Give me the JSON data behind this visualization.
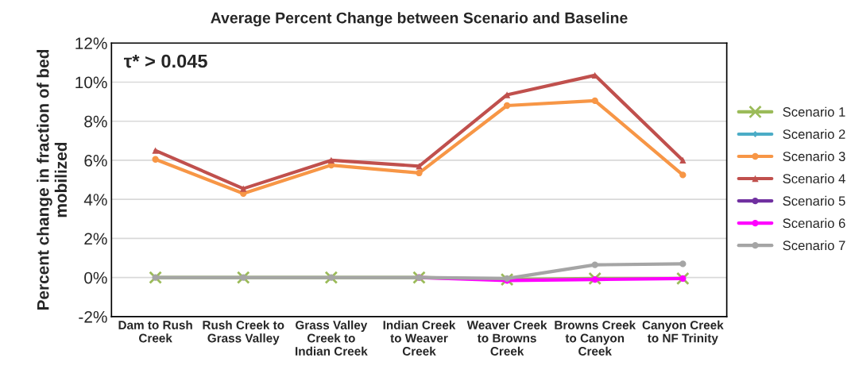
{
  "chart_data": {
    "type": "line",
    "title": "Average Percent Change between Scenario and Baseline",
    "ylabel": "Percent change in fraction of bed\nmobilized",
    "annotations": [
      "τ* > 0.045"
    ],
    "categories": [
      "Dam to Rush\nCreek",
      "Rush Creek to\nGrass Valley",
      "Grass Valley\nCreek to\nIndian Creek",
      "Indian Creek\nto Weaver\nCreek",
      "Weaver Creek\nto Browns\nCreek",
      "Browns Creek\nto Canyon\nCreek",
      "Canyon Creek\nto NF Trinity"
    ],
    "series": [
      {
        "name": "Scenario 1",
        "color": "#9bbb59",
        "marker": "cross",
        "values": [
          0,
          0,
          0,
          0,
          -0.1,
          -0.05,
          -0.05
        ]
      },
      {
        "name": "Scenario 2",
        "color": "#4bacc6",
        "marker": "diamond",
        "values": [
          null,
          null,
          null,
          null,
          null,
          null,
          null
        ]
      },
      {
        "name": "Scenario 3",
        "color": "#f79646",
        "marker": "circle",
        "values": [
          6.05,
          4.3,
          5.75,
          5.35,
          8.8,
          9.05,
          5.25
        ]
      },
      {
        "name": "Scenario 4",
        "color": "#c0504d",
        "marker": "triangle",
        "values": [
          6.5,
          4.55,
          6.0,
          5.7,
          9.35,
          10.35,
          6.0
        ]
      },
      {
        "name": "Scenario 5",
        "color": "#7030a0",
        "marker": "circle",
        "values": [
          null,
          null,
          null,
          null,
          null,
          null,
          null
        ]
      },
      {
        "name": "Scenario 6",
        "color": "#ff00ff",
        "marker": "circle",
        "values": [
          null,
          null,
          null,
          0,
          -0.15,
          -0.1,
          -0.05
        ]
      },
      {
        "name": "Scenario 7",
        "color": "#a5a5a5",
        "marker": "circle",
        "values": [
          0,
          0,
          0,
          0,
          -0.05,
          0.65,
          0.7
        ]
      }
    ],
    "ylim": [
      -2,
      12
    ],
    "yticks": [
      {
        "value": -2,
        "label": "-2%"
      },
      {
        "value": 0,
        "label": "0%"
      },
      {
        "value": 2,
        "label": "2%"
      },
      {
        "value": 4,
        "label": "4%"
      },
      {
        "value": 6,
        "label": "6%"
      },
      {
        "value": 8,
        "label": "8%"
      },
      {
        "value": 10,
        "label": "10%"
      },
      {
        "value": 12,
        "label": "12%"
      }
    ],
    "grid": "y",
    "legend": "right",
    "line_style": "solid"
  }
}
